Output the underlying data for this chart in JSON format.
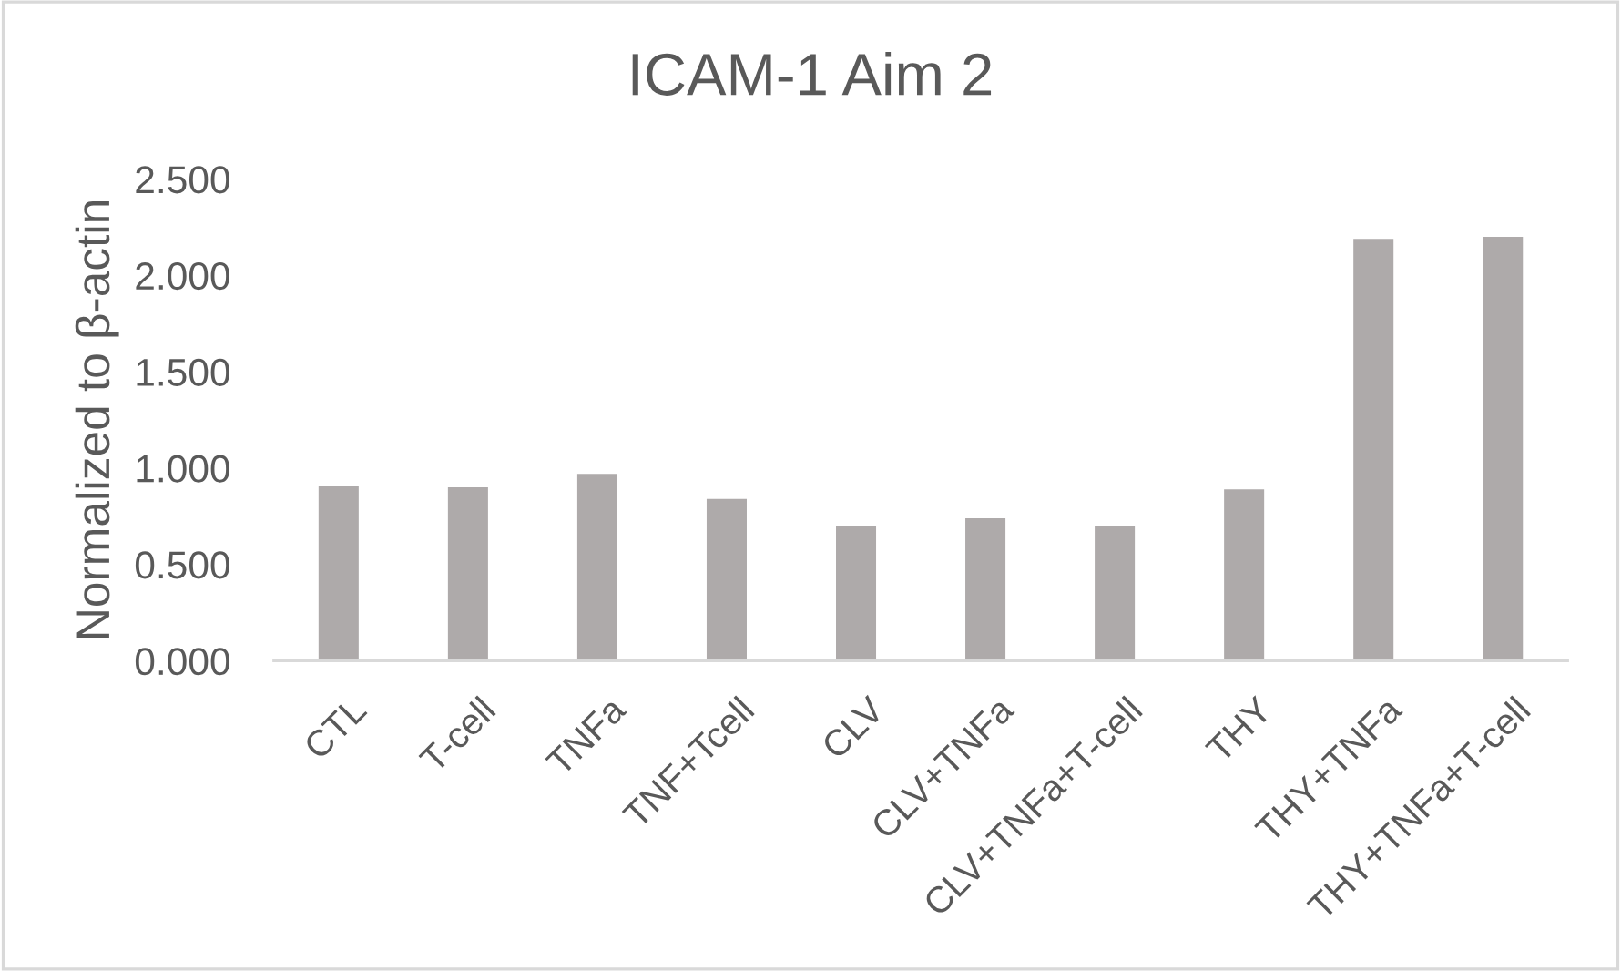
{
  "chart_data": {
    "type": "bar",
    "title": "ICAM-1 Aim 2",
    "ylabel": "Normalized to β-actin",
    "categories": [
      "CTL",
      "T-cell",
      "TNFa",
      "TNF+Tcell",
      "CLV",
      "CLV+TNFa",
      "CLV+TNFa+T-cell",
      "THY",
      "THY+TNFa",
      "THY+TNFa+T-cell"
    ],
    "values": [
      0.91,
      0.9,
      0.97,
      0.84,
      0.7,
      0.74,
      0.7,
      0.89,
      2.19,
      2.2
    ],
    "color": "#aeaaaa",
    "ylim": [
      0,
      2.5
    ],
    "yticks": [
      {
        "value": 0,
        "label": "0.000"
      },
      {
        "value": 0.5,
        "label": "0.500"
      },
      {
        "value": 1,
        "label": "1.000"
      },
      {
        "value": 1.5,
        "label": "1.500"
      },
      {
        "value": 2,
        "label": "2.000"
      },
      {
        "value": 2.5,
        "label": "2.500"
      }
    ],
    "grid": false,
    "legend": false
  }
}
